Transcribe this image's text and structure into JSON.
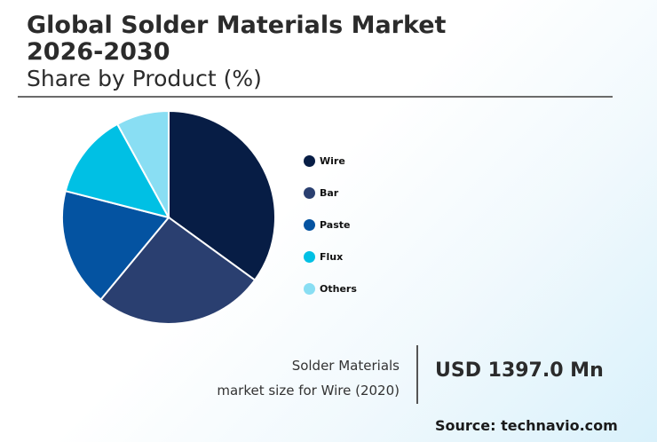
{
  "header": {
    "title": "Global Solder Materials Market 2026-2030",
    "subtitle": "Share by Product (%)"
  },
  "chart_data": {
    "type": "pie",
    "title": "Global Solder Materials Market 2026-2030",
    "subtitle": "Share by Product (%)",
    "categories": [
      "Wire",
      "Bar",
      "Paste",
      "Flux",
      "Others"
    ],
    "values": [
      35,
      26,
      18,
      13,
      8
    ],
    "colors": [
      "#071d45",
      "#2a3f70",
      "#0453a1",
      "#00c0e4",
      "#89def3"
    ],
    "legend_position": "right",
    "start_angle": "top",
    "direction": "clockwise"
  },
  "info": {
    "caption_line1": "Solder Materials",
    "caption_line2": "market size for Wire (2020)",
    "value": "USD 1397.0 Mn"
  },
  "footer": {
    "source": "Source: technavio.com"
  }
}
